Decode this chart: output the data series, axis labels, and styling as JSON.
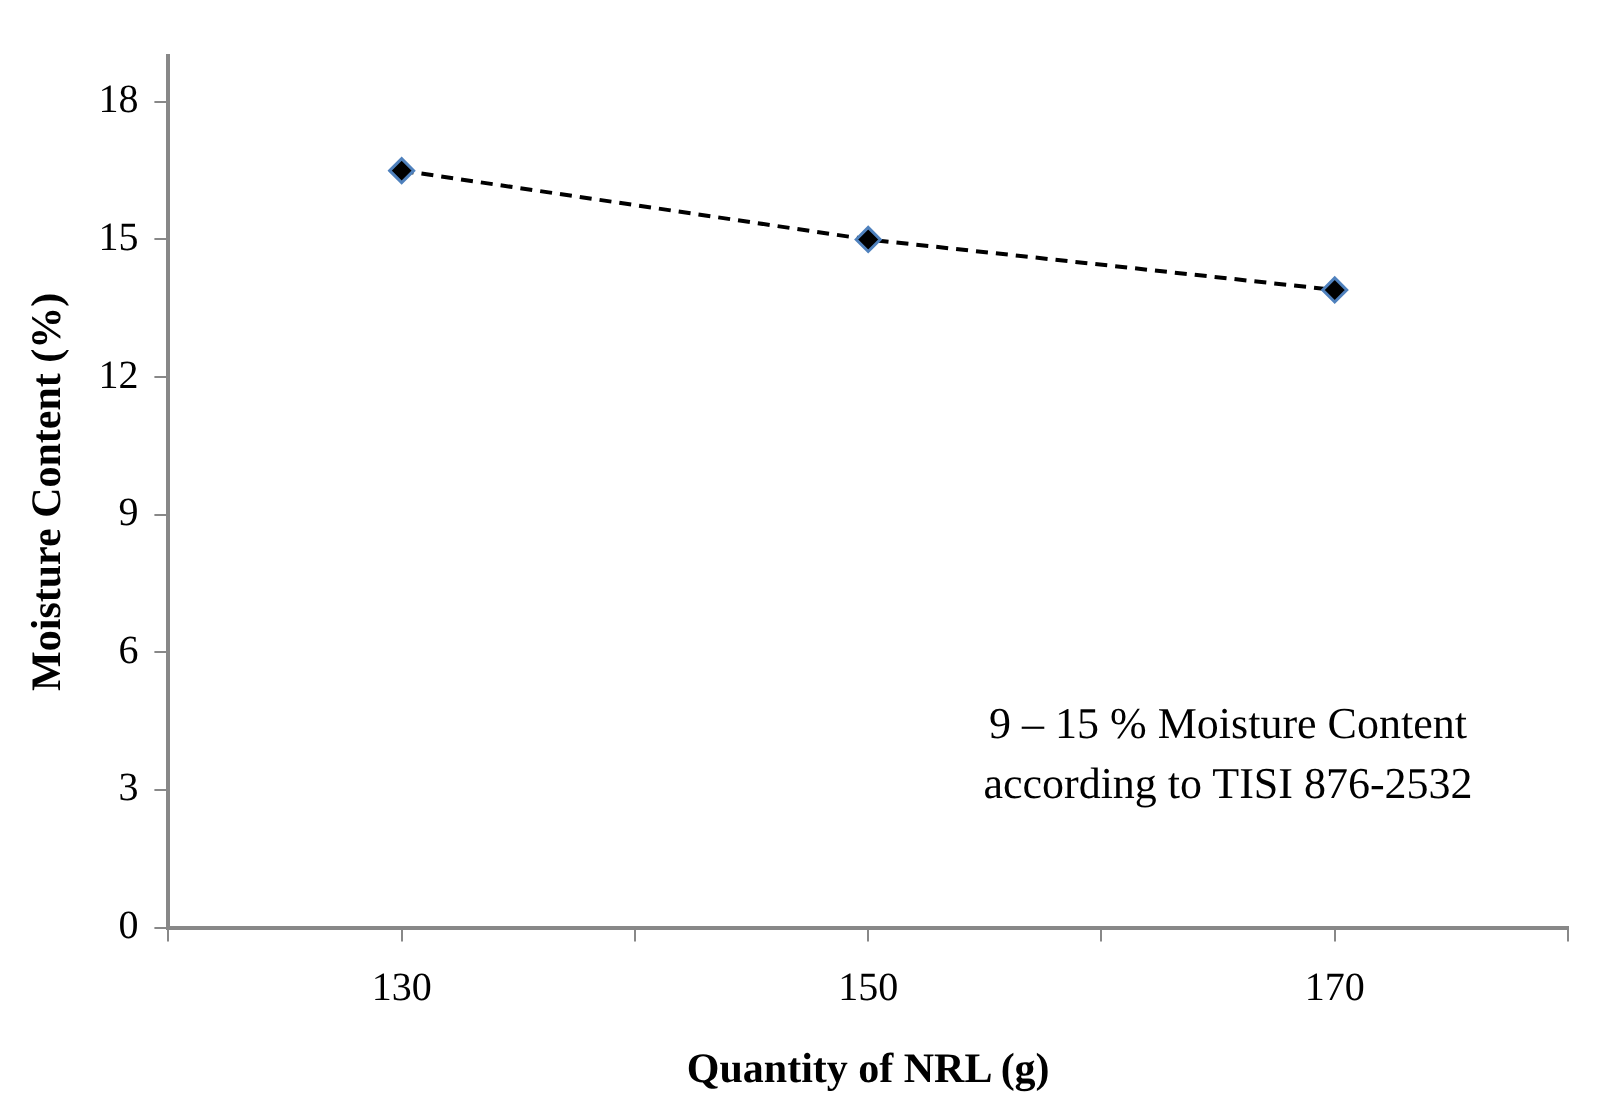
{
  "chart_data": {
    "type": "line",
    "xlabel": "Quantity of NRL (g)",
    "ylabel": "Moisture Content (%)",
    "x": [
      130,
      150,
      170
    ],
    "series": [
      {
        "color": "#000000",
        "values": [
          16.5,
          15.0,
          13.9
        ]
      }
    ],
    "xlim": [
      120,
      180
    ],
    "xticks": [
      {
        "value": 120,
        "label": null
      },
      130,
      {
        "value": 140,
        "label": null
      },
      150,
      {
        "value": 160,
        "label": null
      },
      170,
      {
        "value": 180,
        "label": null
      }
    ],
    "ylim": [
      0,
      19
    ],
    "yticks": [
      0,
      3,
      6,
      9,
      12,
      15,
      18
    ],
    "grid": false,
    "legend": false,
    "marker": "diamond",
    "line_style": "dashed",
    "annotations": [
      "9 – 15 % Moisture Content according to TISI 876-2532"
    ]
  }
}
